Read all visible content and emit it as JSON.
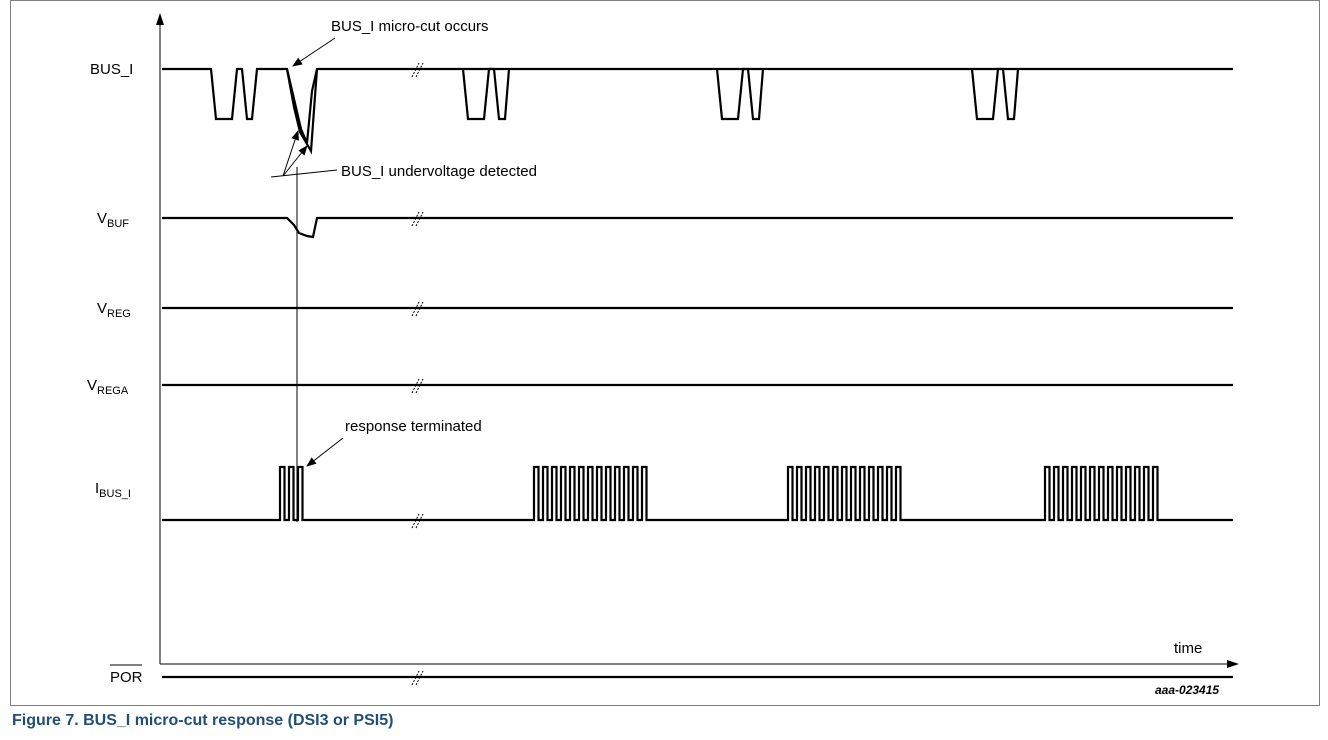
{
  "signals": [
    {
      "id": "bus_i",
      "label": "BUS_I",
      "sub": ""
    },
    {
      "id": "vbuf",
      "label": "V",
      "sub": "BUF"
    },
    {
      "id": "vreg",
      "label": "V",
      "sub": "REG"
    },
    {
      "id": "vrega",
      "label": "V",
      "sub": "REGA"
    },
    {
      "id": "ibus",
      "label": "I",
      "sub": "BUS_I"
    },
    {
      "id": "por",
      "label": "POR",
      "sub": ""
    }
  ],
  "annotations": {
    "microcut": "BUS_I micro-cut occurs",
    "undervoltage": "BUS_I undervoltage detected",
    "terminated": "response terminated"
  },
  "axis": {
    "x_label": "time"
  },
  "figure_id": "aaa-023415",
  "caption": "Figure 7.  BUS_I micro-cut response (DSI3 or PSI5)"
}
